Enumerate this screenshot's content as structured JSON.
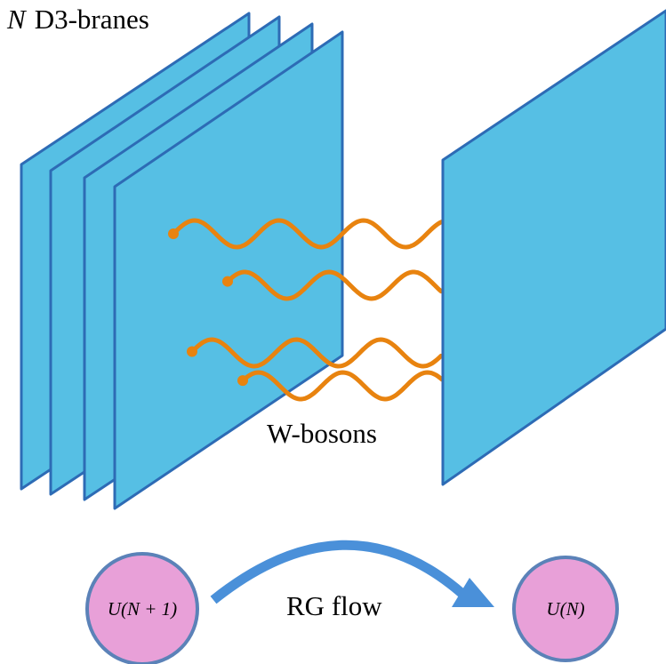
{
  "labels": {
    "symbol": "N",
    "branes": "D3-branes",
    "strings": "W-bosons",
    "flow": "RG flow"
  },
  "nodes": [
    {
      "label": "U(N + 1)"
    },
    {
      "label": "U(N)"
    }
  ]
}
